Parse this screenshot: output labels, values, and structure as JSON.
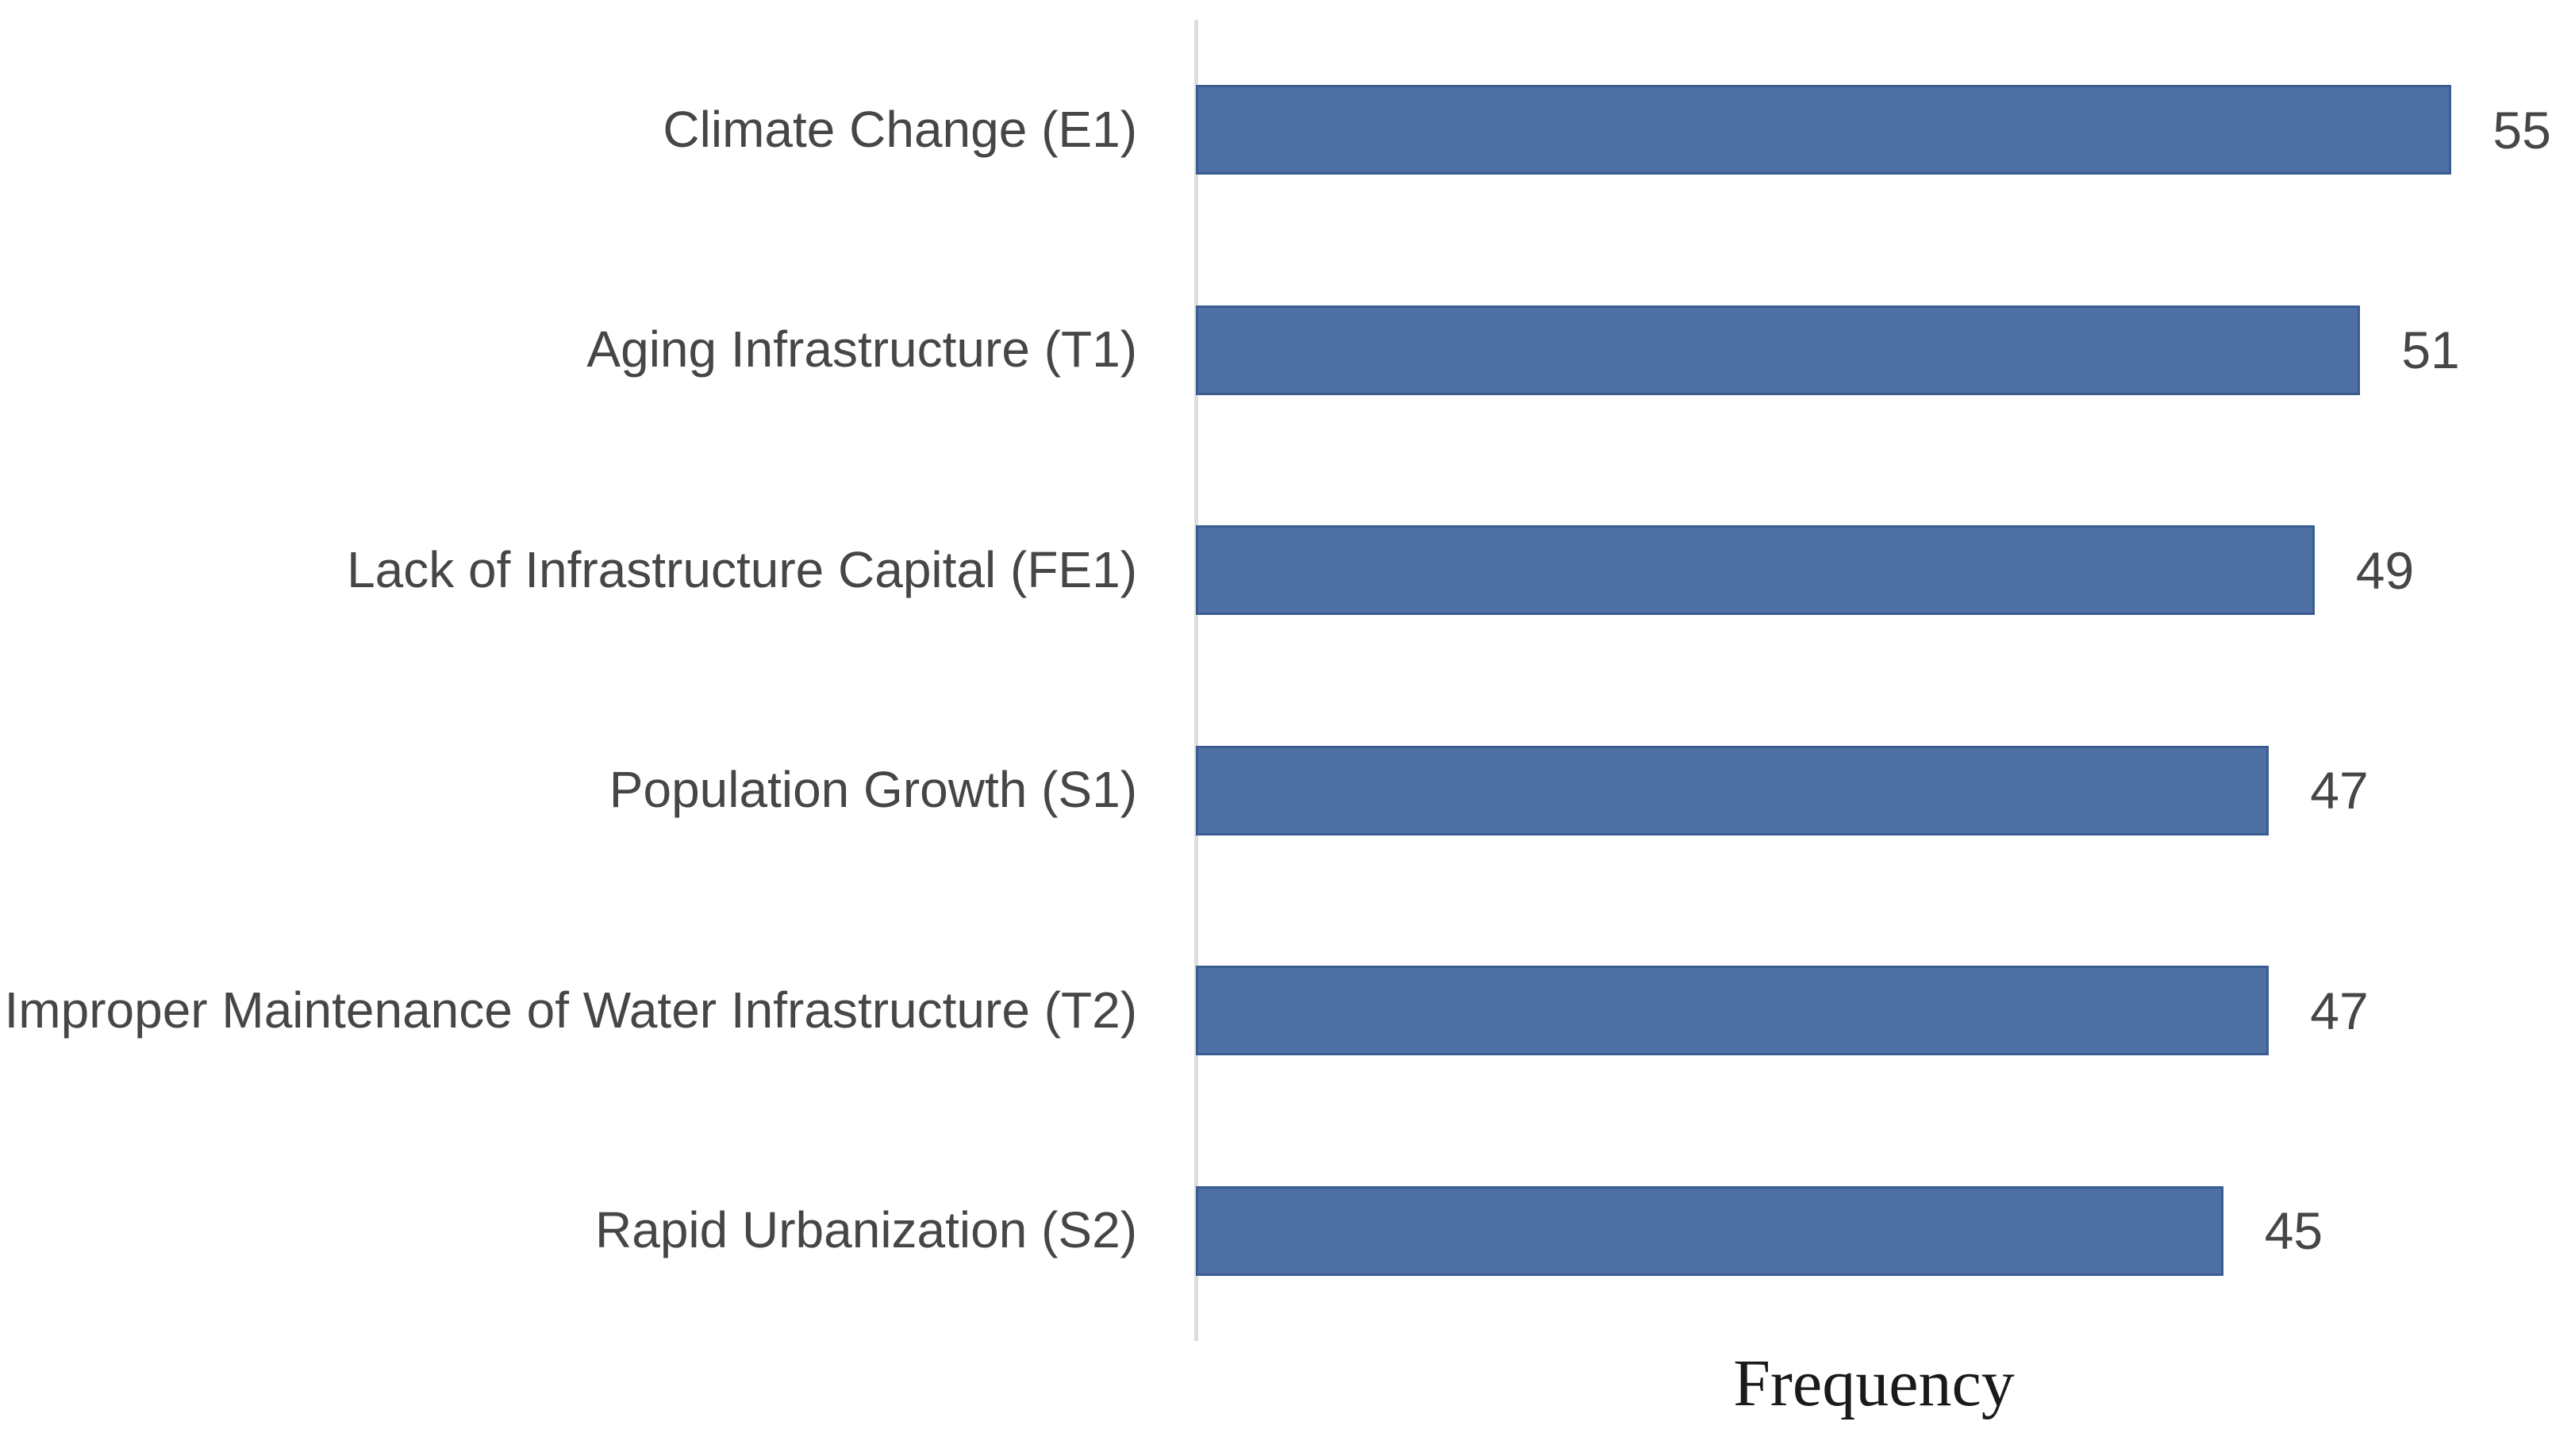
{
  "chart_data": {
    "type": "bar",
    "orientation": "horizontal",
    "title": "",
    "xlabel": "Frequency",
    "ylabel": "",
    "categories": [
      "Climate Change (E1)",
      "Aging Infrastructure (T1)",
      "Lack of Infrastructure Capital (FE1)",
      "Population Growth (S1)",
      "Improper Maintenance of Water Infrastructure (T2)",
      "Rapid Urbanization (S2)"
    ],
    "values": [
      55,
      51,
      49,
      47,
      47,
      45
    ],
    "data_labels": [
      55,
      51,
      49,
      47,
      47,
      45
    ],
    "xlim": [
      0,
      60
    ],
    "grid": false,
    "legend": false,
    "bar_color": "#4E70A5",
    "bar_border_color": "#3A5C90",
    "axis_line_color": "#DDDDDD",
    "category_label_color": "#464646",
    "value_label_color": "#464646",
    "xlabel_color": "#1A1A1A",
    "background_color": "#FFFFFF"
  }
}
